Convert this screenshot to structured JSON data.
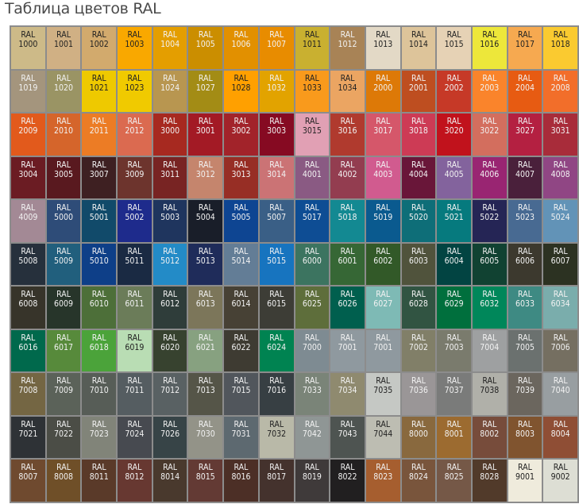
{
  "title": "Таблица цветов RAL",
  "prefix": "RAL",
  "rows": [
    [
      [
        "1000",
        "#CDBA88",
        "d"
      ],
      [
        "1001",
        "#D0B084",
        "d"
      ],
      [
        "1002",
        "#D2AA6D",
        "d"
      ],
      [
        "1003",
        "#F9A800",
        "d"
      ],
      [
        "1004",
        "#E49E00",
        "l"
      ],
      [
        "1005",
        "#CB8E00",
        "l"
      ],
      [
        "1006",
        "#E29000",
        "l"
      ],
      [
        "1007",
        "#E88C00",
        "l"
      ],
      [
        "1011",
        "#C9B030",
        "d"
      ],
      [
        "1012",
        "#A88356",
        "l"
      ],
      [
        "1013",
        "#E3D9C6",
        "d"
      ],
      [
        "1014",
        "#DDC49A",
        "d"
      ],
      [
        "1015",
        "#E6D2B5",
        "d"
      ],
      [
        "1016",
        "#EDE73A",
        "d"
      ],
      [
        "1017",
        "#F6A950",
        "d"
      ],
      [
        "1018",
        "#FACA30",
        "d"
      ]
    ],
    [
      [
        "1019",
        "#A4957D",
        "l"
      ],
      [
        "1020",
        "#9A9464",
        "l"
      ],
      [
        "1021",
        "#EEC900",
        "d"
      ],
      [
        "1023",
        "#F0CA00",
        "d"
      ],
      [
        "1024",
        "#B89650",
        "l"
      ],
      [
        "1027",
        "#A38C15",
        "l"
      ],
      [
        "1028",
        "#FFA000",
        "d"
      ],
      [
        "1032",
        "#E2A300",
        "l"
      ],
      [
        "1033",
        "#F99A1C",
        "d"
      ],
      [
        "1034",
        "#EBA562",
        "d"
      ],
      [
        "2000",
        "#DD7907",
        "l"
      ],
      [
        "2001",
        "#BE4E20",
        "l"
      ],
      [
        "2002",
        "#C63927",
        "l"
      ],
      [
        "2003",
        "#FA842B",
        "l"
      ],
      [
        "2004",
        "#E75B12",
        "l"
      ],
      [
        "2008",
        "#F26E2A",
        "l"
      ]
    ],
    [
      [
        "2009",
        "#E25A1C",
        "l"
      ],
      [
        "2010",
        "#D5652B",
        "l"
      ],
      [
        "2011",
        "#EC7C25",
        "l"
      ],
      [
        "2012",
        "#DB6A50",
        "l"
      ],
      [
        "3000",
        "#A72920",
        "l"
      ],
      [
        "3001",
        "#A31A25",
        "l"
      ],
      [
        "3002",
        "#A2232A",
        "l"
      ],
      [
        "3003",
        "#860A22",
        "l"
      ],
      [
        "3015",
        "#E1A0B4",
        "d"
      ],
      [
        "3016",
        "#B03A2E",
        "l"
      ],
      [
        "3017",
        "#D5576A",
        "l"
      ],
      [
        "3018",
        "#CD3B55",
        "l"
      ],
      [
        "3020",
        "#C1121C",
        "l"
      ],
      [
        "3022",
        "#D36E5E",
        "l"
      ],
      [
        "3027",
        "#B42041",
        "l"
      ],
      [
        "3031",
        "#A82C3A",
        "l"
      ]
    ],
    [
      [
        "3004",
        "#6B1C23",
        "l"
      ],
      [
        "3005",
        "#59191F",
        "l"
      ],
      [
        "3007",
        "#3E2022",
        "l"
      ],
      [
        "3009",
        "#6D342D",
        "l"
      ],
      [
        "3011",
        "#782423",
        "l"
      ],
      [
        "3012",
        "#C5856D",
        "l"
      ],
      [
        "3013",
        "#972E25",
        "l"
      ],
      [
        "3014",
        "#CB7375",
        "l"
      ],
      [
        "4001",
        "#8A5A83",
        "l"
      ],
      [
        "4002",
        "#933D50",
        "l"
      ],
      [
        "4003",
        "#D15B8F",
        "l"
      ],
      [
        "4004",
        "#691639",
        "l"
      ],
      [
        "4005",
        "#83639D",
        "l"
      ],
      [
        "4006",
        "#992572",
        "l"
      ],
      [
        "4007",
        "#4A203B",
        "l"
      ],
      [
        "4008",
        "#904684",
        "l"
      ]
    ],
    [
      [
        "4009",
        "#A38995",
        "l"
      ],
      [
        "5000",
        "#2E4C78",
        "l"
      ],
      [
        "5001",
        "#114A6A",
        "l"
      ],
      [
        "5002",
        "#1E2B8C",
        "l"
      ],
      [
        "5003",
        "#1F355E",
        "l"
      ],
      [
        "5004",
        "#191E29",
        "l"
      ],
      [
        "5005",
        "#0E4592",
        "l"
      ],
      [
        "5007",
        "#3A5F86",
        "l"
      ],
      [
        "5017",
        "#0E4D94",
        "l"
      ],
      [
        "5018",
        "#138992",
        "l"
      ],
      [
        "5019",
        "#0A5A8F",
        "l"
      ],
      [
        "5020",
        "#0E6E78",
        "l"
      ],
      [
        "5021",
        "#067A7E",
        "l"
      ],
      [
        "5022",
        "#252555",
        "l"
      ],
      [
        "5023",
        "#486A92",
        "l"
      ],
      [
        "5024",
        "#6293B7",
        "l"
      ]
    ],
    [
      [
        "5008",
        "#26303C",
        "l"
      ],
      [
        "5009",
        "#215F7D",
        "l"
      ],
      [
        "5010",
        "#0E3F88",
        "l"
      ],
      [
        "5011",
        "#1A2A43",
        "l"
      ],
      [
        "5012",
        "#238BC7",
        "l"
      ],
      [
        "5013",
        "#1F2C5A",
        "l"
      ],
      [
        "5014",
        "#637D96",
        "l"
      ],
      [
        "5015",
        "#1774BF",
        "l"
      ],
      [
        "6000",
        "#3C7460",
        "l"
      ],
      [
        "6001",
        "#366735",
        "l"
      ],
      [
        "6002",
        "#325928",
        "l"
      ],
      [
        "6003",
        "#50533C",
        "l"
      ],
      [
        "6004",
        "#024442",
        "l"
      ],
      [
        "6005",
        "#114232",
        "l"
      ],
      [
        "6006",
        "#3C392E",
        "l"
      ],
      [
        "6007",
        "#2C3222",
        "l"
      ]
    ],
    [
      [
        "6008",
        "#37342A",
        "l"
      ],
      [
        "6009",
        "#27352A",
        "l"
      ],
      [
        "6010",
        "#4D6F39",
        "l"
      ],
      [
        "6011",
        "#6B7C59",
        "l"
      ],
      [
        "6012",
        "#2F3D3A",
        "l"
      ],
      [
        "6013",
        "#7C765A",
        "l"
      ],
      [
        "6014",
        "#474135",
        "l"
      ],
      [
        "6015",
        "#3D3D36",
        "l"
      ],
      [
        "6025",
        "#5E6E3B",
        "l"
      ],
      [
        "6026",
        "#005F4E",
        "l"
      ],
      [
        "6027",
        "#7EBAB5",
        "l"
      ],
      [
        "6028",
        "#315442",
        "l"
      ],
      [
        "6029",
        "#006F3D",
        "l"
      ],
      [
        "6032",
        "#00875A",
        "l"
      ],
      [
        "6033",
        "#3E8A83",
        "l"
      ],
      [
        "6034",
        "#7AADAC",
        "l"
      ]
    ],
    [
      [
        "6016",
        "#00694C",
        "l"
      ],
      [
        "6017",
        "#578A3B",
        "l"
      ],
      [
        "6018",
        "#4BA33A",
        "l"
      ],
      [
        "6019",
        "#B9DDB4",
        "d"
      ],
      [
        "6020",
        "#37422F",
        "l"
      ],
      [
        "6021",
        "#87A180",
        "l"
      ],
      [
        "6022",
        "#3E3B32",
        "l"
      ],
      [
        "6024",
        "#008351",
        "l"
      ],
      [
        "7000",
        "#7E8B92",
        "l"
      ],
      [
        "7001",
        "#8F999F",
        "l"
      ],
      [
        "7001",
        "#8F999F",
        "l"
      ],
      [
        "7002",
        "#817F68",
        "l"
      ],
      [
        "7003",
        "#7A7B6D",
        "l"
      ],
      [
        "7004",
        "#9EA0A1",
        "l"
      ],
      [
        "7005",
        "#6B716F",
        "l"
      ],
      [
        "7006",
        "#756F61",
        "l"
      ]
    ],
    [
      [
        "7008",
        "#746643",
        "l"
      ],
      [
        "7009",
        "#5B6259",
        "l"
      ],
      [
        "7010",
        "#575D57",
        "l"
      ],
      [
        "7011",
        "#555D61",
        "l"
      ],
      [
        "7012",
        "#596163",
        "l"
      ],
      [
        "7013",
        "#555548",
        "l"
      ],
      [
        "7015",
        "#51565C",
        "l"
      ],
      [
        "7016",
        "#373F43",
        "l"
      ],
      [
        "7033",
        "#7A8478",
        "l"
      ],
      [
        "7034",
        "#8F8A6F",
        "l"
      ],
      [
        "7035",
        "#C5C8C4",
        "d"
      ],
      [
        "7036",
        "#9A9697",
        "l"
      ],
      [
        "7037",
        "#7A7B7A",
        "l"
      ],
      [
        "7038",
        "#B0B0A9",
        "d"
      ],
      [
        "7039",
        "#6B665E",
        "l"
      ],
      [
        "7040",
        "#989EA1",
        "l"
      ]
    ],
    [
      [
        "7021",
        "#2E3236",
        "l"
      ],
      [
        "7022",
        "#4B4D46",
        "l"
      ],
      [
        "7023",
        "#818479",
        "l"
      ],
      [
        "7024",
        "#474A50",
        "l"
      ],
      [
        "7026",
        "#374447",
        "l"
      ],
      [
        "7030",
        "#939388",
        "l"
      ],
      [
        "7031",
        "#5D6970",
        "l"
      ],
      [
        "7032",
        "#B9B9A8",
        "d"
      ],
      [
        "7042",
        "#8F9695",
        "l"
      ],
      [
        "7043",
        "#4E5451",
        "l"
      ],
      [
        "7044",
        "#BDBDB2",
        "d"
      ],
      [
        "8000",
        "#89693E",
        "l"
      ],
      [
        "8001",
        "#9C6B30",
        "l"
      ],
      [
        "8002",
        "#774C3B",
        "l"
      ],
      [
        "8003",
        "#80542F",
        "l"
      ],
      [
        "8004",
        "#8F4E35",
        "l"
      ]
    ],
    [
      [
        "8007",
        "#6F4A2F",
        "l"
      ],
      [
        "8008",
        "#6F4F28",
        "l"
      ],
      [
        "8011",
        "#5A3A29",
        "l"
      ],
      [
        "8012",
        "#673831",
        "l"
      ],
      [
        "8014",
        "#49392D",
        "l"
      ],
      [
        "8015",
        "#633A34",
        "l"
      ],
      [
        "8016",
        "#4C2F26",
        "l"
      ],
      [
        "8017",
        "#44322D",
        "l"
      ],
      [
        "8019",
        "#3F3A3A",
        "l"
      ],
      [
        "8022",
        "#211F20",
        "l"
      ],
      [
        "8023",
        "#A65E2F",
        "l"
      ],
      [
        "8024",
        "#79553C",
        "l"
      ],
      [
        "8025",
        "#755847",
        "l"
      ],
      [
        "8028",
        "#513A2A",
        "l"
      ],
      [
        "9001",
        "#EFEBDC",
        "d"
      ],
      [
        "9002",
        "#DDDED4",
        "d"
      ]
    ]
  ]
}
